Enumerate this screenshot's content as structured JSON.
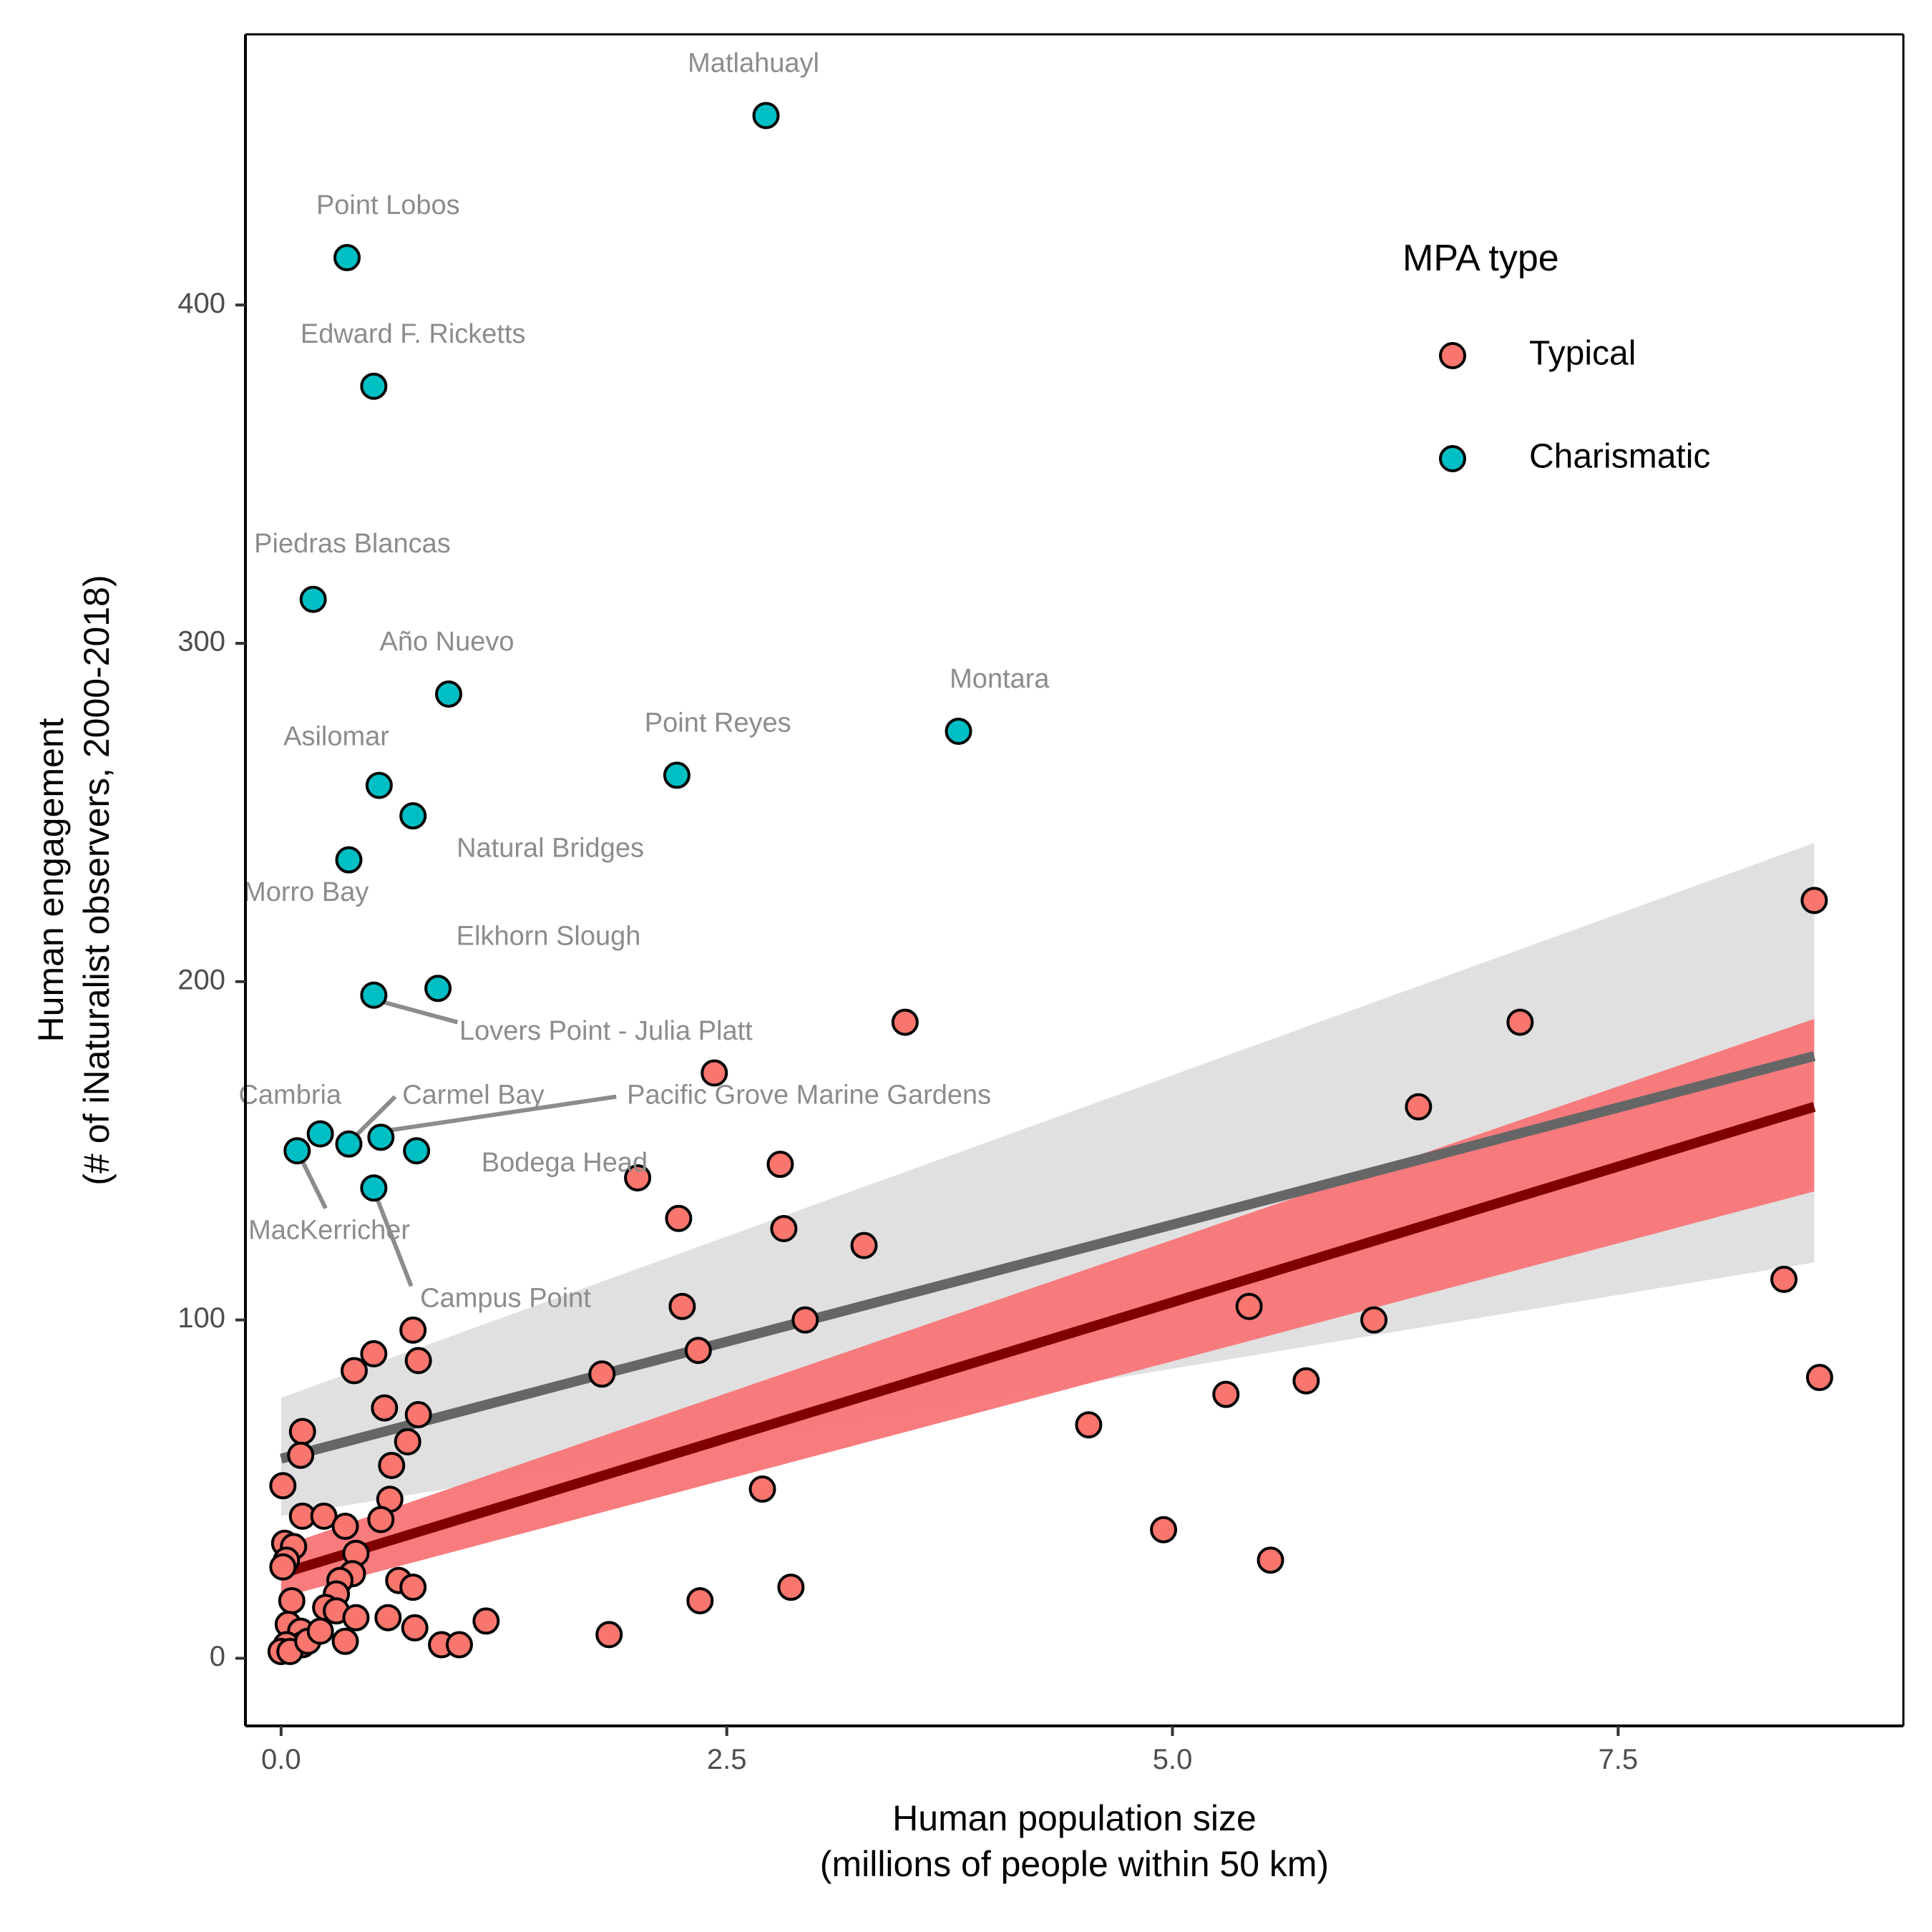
{
  "chart_data": {
    "type": "scatter",
    "xlabel": [
      "Human population size",
      "(millions of people within 50 km)"
    ],
    "ylabel": [
      "Human engagement",
      "(# of iNaturalist observers, 2000-2018)"
    ],
    "xlim": [
      -0.2,
      9.1
    ],
    "ylim": [
      -20,
      480
    ],
    "x_ticks": [
      0,
      2.5,
      5,
      7.5
    ],
    "x_tick_labels": [
      "0.0",
      "2.5",
      "5.0",
      "7.5"
    ],
    "y_ticks": [
      0,
      100,
      200,
      300,
      400
    ],
    "y_tick_labels": [
      "0",
      "100",
      "200",
      "300",
      "400"
    ],
    "grid": false,
    "legend": {
      "title": "MPA type",
      "position": "top-right",
      "entries": [
        {
          "label": "Typical",
          "color": "#F8766D"
        },
        {
          "label": "Charismatic",
          "color": "#00BFC4"
        }
      ]
    },
    "series": [
      {
        "name": "Typical",
        "color": "#F8766D",
        "points": [
          [
            8.6,
            224
          ],
          [
            6.95,
            188
          ],
          [
            3.5,
            188
          ],
          [
            2.43,
            173
          ],
          [
            6.38,
            163
          ],
          [
            2.8,
            146
          ],
          [
            2.0,
            142
          ],
          [
            2.23,
            130
          ],
          [
            2.82,
            127
          ],
          [
            3.27,
            122
          ],
          [
            8.43,
            112
          ],
          [
            2.25,
            104
          ],
          [
            5.43,
            104
          ],
          [
            6.13,
            100
          ],
          [
            2.94,
            100
          ],
          [
            0.74,
            97
          ],
          [
            2.34,
            91
          ],
          [
            0.52,
            90
          ],
          [
            0.41,
            85
          ],
          [
            0.77,
            88
          ],
          [
            1.8,
            84
          ],
          [
            8.63,
            83
          ],
          [
            5.75,
            82
          ],
          [
            5.3,
            78
          ],
          [
            0.58,
            74
          ],
          [
            0.77,
            72
          ],
          [
            4.53,
            69
          ],
          [
            0.12,
            67
          ],
          [
            0.71,
            64
          ],
          [
            0.11,
            60
          ],
          [
            0.62,
            57
          ],
          [
            0.01,
            51
          ],
          [
            2.7,
            50
          ],
          [
            0.61,
            47
          ],
          [
            0.12,
            42
          ],
          [
            0.24,
            42
          ],
          [
            0.56,
            41
          ],
          [
            0.36,
            39
          ],
          [
            4.95,
            38
          ],
          [
            0.02,
            34
          ],
          [
            0.07,
            33
          ],
          [
            0.42,
            31
          ],
          [
            5.55,
            29
          ],
          [
            0.03,
            29
          ],
          [
            0.01,
            27
          ],
          [
            0.4,
            25
          ],
          [
            0.33,
            23
          ],
          [
            0.66,
            23
          ],
          [
            0.74,
            21
          ],
          [
            2.86,
            21
          ],
          [
            0.31,
            19
          ],
          [
            0.06,
            17
          ],
          [
            2.35,
            17
          ],
          [
            0.25,
            15
          ],
          [
            0.31,
            14
          ],
          [
            0.42,
            12
          ],
          [
            0.6,
            12
          ],
          [
            1.15,
            11
          ],
          [
            0.04,
            10
          ],
          [
            0.75,
            9
          ],
          [
            0.11,
            8
          ],
          [
            1.84,
            7
          ],
          [
            0.36,
            5
          ],
          [
            0.12,
            4
          ],
          [
            0.9,
            4
          ],
          [
            1.0,
            4
          ],
          [
            0.03,
            4
          ],
          [
            0.0,
            2
          ],
          [
            0.05,
            2
          ],
          [
            0.15,
            5
          ],
          [
            0.22,
            8
          ]
        ]
      },
      {
        "name": "Charismatic",
        "color": "#00BFC4",
        "points": [
          [
            2.72,
            456
          ],
          [
            0.37,
            414
          ],
          [
            0.52,
            376
          ],
          [
            0.18,
            313
          ],
          [
            0.94,
            285
          ],
          [
            3.8,
            274
          ],
          [
            2.22,
            261
          ],
          [
            0.55,
            258
          ],
          [
            0.74,
            249
          ],
          [
            0.38,
            236
          ],
          [
            0.88,
            198
          ],
          [
            0.52,
            196
          ],
          [
            0.22,
            155
          ],
          [
            0.56,
            154
          ],
          [
            0.38,
            152
          ],
          [
            0.09,
            150
          ],
          [
            0.76,
            150
          ],
          [
            0.52,
            139
          ]
        ]
      }
    ],
    "regression": [
      {
        "series": "All",
        "line": [
          [
            0.0,
            59
          ],
          [
            8.6,
            178
          ]
        ],
        "ci_upper": [
          [
            0.0,
            77
          ],
          [
            8.6,
            241
          ]
        ],
        "ci_lower": [
          [
            0.0,
            42
          ],
          [
            8.6,
            117
          ]
        ],
        "line_color": "#666666",
        "band_color": "#e0e0e0"
      },
      {
        "series": "Typical",
        "line": [
          [
            0.0,
            25
          ],
          [
            8.6,
            163
          ]
        ],
        "ci_upper": [
          [
            0.0,
            33
          ],
          [
            8.6,
            189
          ]
        ],
        "ci_lower": [
          [
            0.0,
            18
          ],
          [
            8.6,
            138
          ]
        ],
        "line_color": "#800000",
        "band_color": "#f87577"
      }
    ],
    "annotations": [
      {
        "text": "Matlahuayl",
        "x": 2.72,
        "y": 456,
        "lx": 2.65,
        "ly": 471,
        "anchor": "middle"
      },
      {
        "text": "Point Lobos",
        "x": 0.37,
        "y": 414,
        "lx": 0.6,
        "ly": 429,
        "anchor": "middle"
      },
      {
        "text": "Edward F. Ricketts",
        "x": 0.52,
        "y": 376,
        "lx": 0.74,
        "ly": 391,
        "anchor": "middle"
      },
      {
        "text": "Piedras Blancas",
        "x": 0.18,
        "y": 313,
        "lx": 0.4,
        "ly": 329,
        "anchor": "middle"
      },
      {
        "text": "Año Nuevo",
        "x": 0.94,
        "y": 285,
        "lx": 0.93,
        "ly": 300,
        "anchor": "middle"
      },
      {
        "text": "Montara",
        "x": 3.8,
        "y": 274,
        "lx": 4.03,
        "ly": 289,
        "anchor": "middle"
      },
      {
        "text": "Point Reyes",
        "x": 2.22,
        "y": 261,
        "lx": 2.45,
        "ly": 276,
        "anchor": "middle"
      },
      {
        "text": "Asilomar",
        "x": 0.55,
        "y": 258,
        "lx": 0.31,
        "ly": 272,
        "anchor": "middle"
      },
      {
        "text": "Natural Bridges",
        "x": 0.74,
        "y": 249,
        "lx": 1.51,
        "ly": 239,
        "anchor": "middle"
      },
      {
        "text": "Morro Bay",
        "x": 0.38,
        "y": 236,
        "lx": 0.14,
        "ly": 226,
        "anchor": "middle"
      },
      {
        "text": "Elkhorn Slough",
        "x": 0.88,
        "y": 198,
        "lx": 1.5,
        "ly": 213,
        "anchor": "middle"
      },
      {
        "text": "Lovers Point - Julia Platt",
        "x": 0.52,
        "y": 196,
        "lx": 1.0,
        "ly": 185,
        "anchor": "start",
        "leader": [
          [
            0.57,
            194
          ],
          [
            0.99,
            188
          ]
        ]
      },
      {
        "text": "Cambria",
        "x": 0.22,
        "y": 155,
        "lx": 0.05,
        "ly": 166,
        "anchor": "middle"
      },
      {
        "text": "Carmel Bay",
        "x": 0.38,
        "y": 152,
        "lx": 0.68,
        "ly": 166,
        "anchor": "start",
        "leader": [
          [
            0.64,
            166
          ],
          [
            0.41,
            154
          ]
        ]
      },
      {
        "text": "Pacific Grove Marine Gardens",
        "x": 0.56,
        "y": 154,
        "lx": 1.94,
        "ly": 166,
        "anchor": "start",
        "leader": [
          [
            1.88,
            166
          ],
          [
            0.6,
            156
          ]
        ]
      },
      {
        "text": "Bodega Head",
        "x": 0.76,
        "y": 150,
        "lx": 1.59,
        "ly": 146,
        "anchor": "middle"
      },
      {
        "text": "MacKerricher",
        "x": 0.09,
        "y": 150,
        "lx": 0.27,
        "ly": 126,
        "anchor": "middle",
        "leader": [
          [
            0.1,
            149
          ],
          [
            0.25,
            133
          ]
        ]
      },
      {
        "text": "Campus Point",
        "x": 0.52,
        "y": 139,
        "lx": 0.78,
        "ly": 106,
        "anchor": "start",
        "leader": [
          [
            0.53,
            137
          ],
          [
            0.73,
            110
          ]
        ]
      }
    ]
  }
}
